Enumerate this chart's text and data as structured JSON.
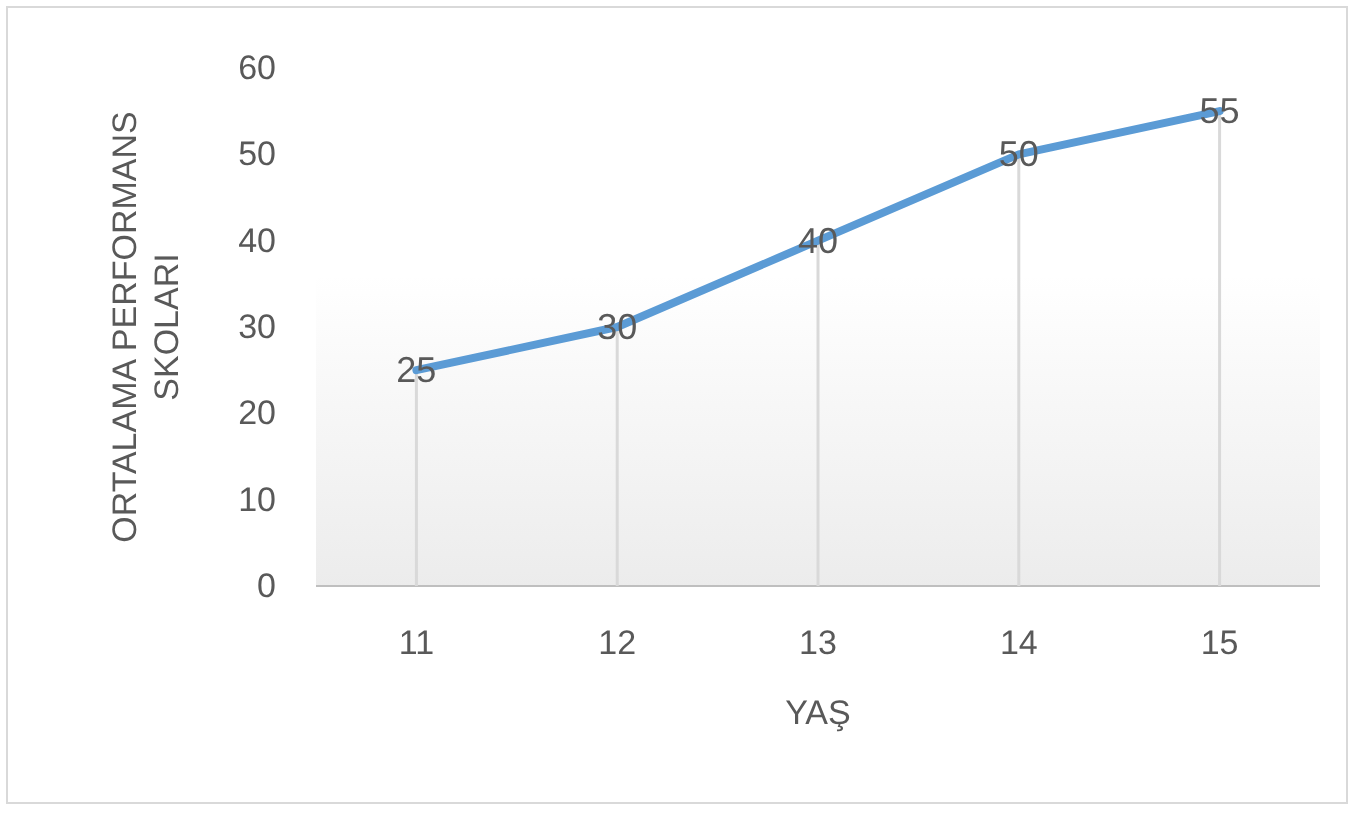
{
  "chart_data": {
    "type": "line",
    "xlabel": "YAŞ",
    "ylabel": "ORTALAMA PERFORMANS SKOLARI",
    "categories": [
      "11",
      "12",
      "13",
      "14",
      "15"
    ],
    "series": [
      {
        "color": "#5b9bd5",
        "values": [
          25,
          30,
          40,
          50,
          55
        ]
      }
    ],
    "ylim": [
      0,
      60
    ],
    "yticks": [
      0,
      10,
      20,
      30,
      40,
      50,
      60
    ],
    "data_labels": true,
    "grid": "x",
    "marker": "none",
    "line_style": "solid"
  }
}
